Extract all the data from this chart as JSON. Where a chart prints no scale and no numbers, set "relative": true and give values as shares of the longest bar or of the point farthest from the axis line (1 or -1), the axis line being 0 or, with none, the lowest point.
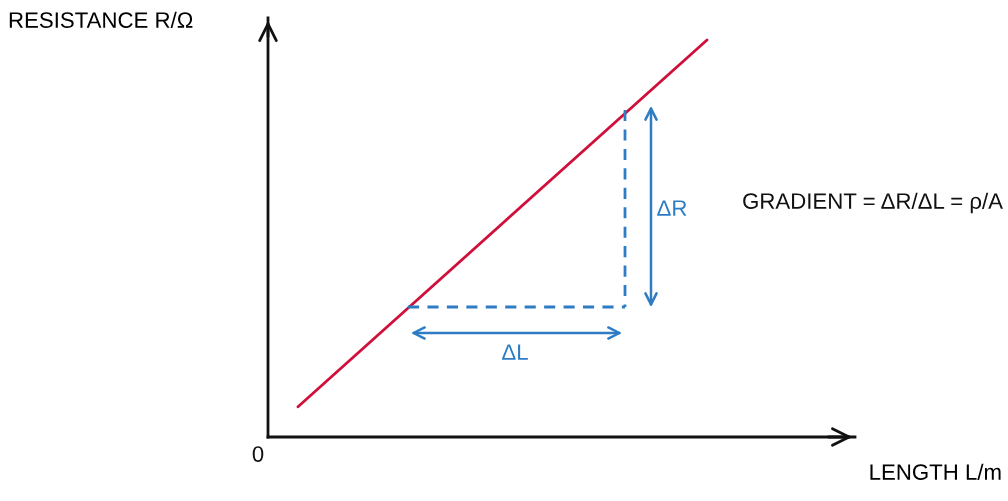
{
  "chart_data": {
    "type": "line",
    "relative": true,
    "xlabel": "LENGTH L/m",
    "ylabel": "RESISTANCE R/Ω",
    "categories": [
      null,
      null
    ],
    "series": [
      {
        "color": "#d0103a",
        "values": [
          0.076,
          1
        ]
      }
    ],
    "annotations": [
      "0",
      "ΔR",
      "ΔL",
      "GRADIENT = ΔR/ΔL = ρ/A"
    ]
  }
}
